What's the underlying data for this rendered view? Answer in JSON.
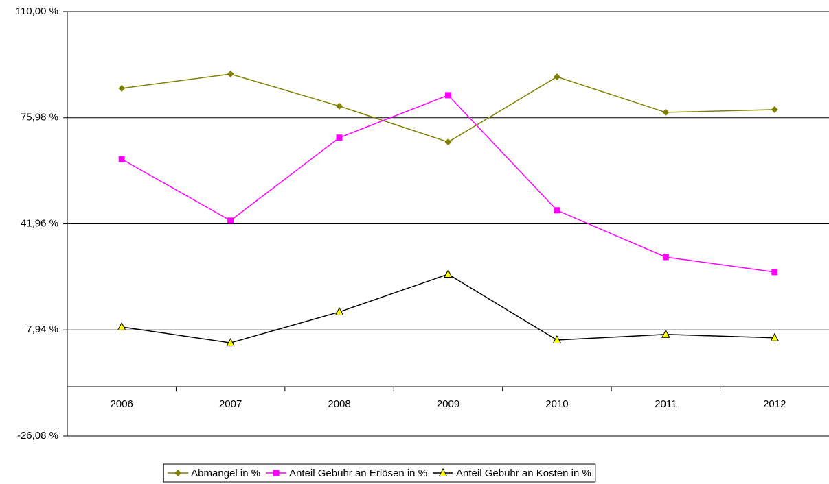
{
  "chart_data": {
    "type": "line",
    "categories": [
      "2006",
      "2007",
      "2008",
      "2009",
      "2010",
      "2011",
      "2012"
    ],
    "series": [
      {
        "name": "Abmangel in %",
        "color": "#808000",
        "marker": "diamond",
        "marker_color": "#808000",
        "values": [
          85.4,
          90.0,
          79.7,
          68.2,
          89.1,
          77.7,
          78.6
        ]
      },
      {
        "name": "Anteil Gebühr an Erlösen in %",
        "color": "#ff00ff",
        "marker": "square",
        "marker_color": "#ff00ff",
        "values": [
          62.7,
          43.0,
          69.6,
          83.2,
          46.3,
          31.3,
          26.5
        ]
      },
      {
        "name": "Anteil Gebühr an Kosten in %",
        "color": "#000000",
        "marker": "triangle",
        "marker_color": "#ffff00",
        "values": [
          8.9,
          3.8,
          13.7,
          25.8,
          4.7,
          6.5,
          5.4
        ]
      }
    ],
    "ylim": [
      -26.08,
      110.0
    ],
    "yticks": [
      {
        "value": -26.08,
        "label": "-26,08 %"
      },
      {
        "value": 7.94,
        "label": "7,94 %"
      },
      {
        "value": 41.96,
        "label": "41,96 %"
      },
      {
        "value": 75.98,
        "label": "75,98 %"
      },
      {
        "value": 110.0,
        "label": "110,00 %"
      }
    ],
    "grid": true,
    "legend": "bottom"
  }
}
